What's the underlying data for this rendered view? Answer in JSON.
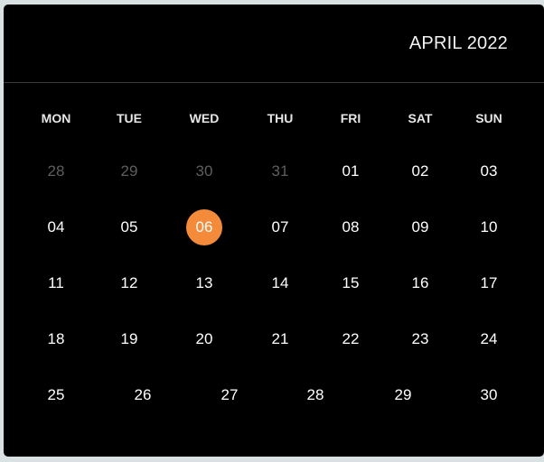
{
  "calendar": {
    "title": "APRIL 2022",
    "weekdays": [
      "MON",
      "TUE",
      "WED",
      "THU",
      "FRI",
      "SAT",
      "SUN"
    ],
    "weeks": [
      [
        {
          "d": "28",
          "muted": true
        },
        {
          "d": "29",
          "muted": true
        },
        {
          "d": "30",
          "muted": true
        },
        {
          "d": "31",
          "muted": true
        },
        {
          "d": "01"
        },
        {
          "d": "02"
        },
        {
          "d": "03"
        }
      ],
      [
        {
          "d": "04"
        },
        {
          "d": "05"
        },
        {
          "d": "06",
          "selected": true
        },
        {
          "d": "07"
        },
        {
          "d": "08"
        },
        {
          "d": "09"
        },
        {
          "d": "10"
        }
      ],
      [
        {
          "d": "11"
        },
        {
          "d": "12"
        },
        {
          "d": "13"
        },
        {
          "d": "14"
        },
        {
          "d": "15"
        },
        {
          "d": "16"
        },
        {
          "d": "17"
        }
      ],
      [
        {
          "d": "18"
        },
        {
          "d": "19"
        },
        {
          "d": "20"
        },
        {
          "d": "21"
        },
        {
          "d": "22"
        },
        {
          "d": "23"
        },
        {
          "d": "24"
        }
      ],
      [
        {
          "d": "25"
        },
        {
          "d": "26"
        },
        {
          "d": "27"
        },
        {
          "d": "28"
        },
        {
          "d": "29"
        },
        {
          "d": "30"
        }
      ]
    ],
    "colors": {
      "background": "#000000",
      "selected": "#f38b3a",
      "muted_text": "#5e5e5e",
      "text": "#ffffff"
    }
  }
}
